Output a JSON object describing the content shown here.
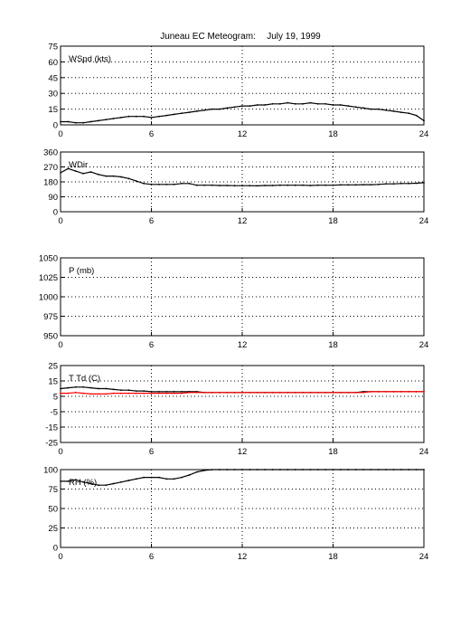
{
  "figure": {
    "title": "Juneau EC Meteogram:",
    "date": "July 19, 1999"
  },
  "chart_data": [
    {
      "type": "scatter",
      "panel_label": "WSpd (kts)",
      "x": [
        0,
        0.5,
        1,
        1.5,
        2,
        2.5,
        3,
        3.5,
        4,
        4.5,
        5,
        5.5,
        6,
        6.5,
        7,
        7.5,
        8,
        8.5,
        9,
        9.5,
        10,
        10.5,
        11,
        11.5,
        12,
        12.5,
        13,
        13.5,
        14,
        14.5,
        15,
        15.5,
        16,
        16.5,
        17,
        17.5,
        18,
        18.5,
        19,
        19.5,
        20,
        20.5,
        21,
        21.5,
        22,
        22.5,
        23,
        23.5,
        24
      ],
      "series": [
        {
          "name": "",
          "color": "#000000",
          "values": [
            3,
            3,
            2,
            2,
            3,
            4,
            5,
            6,
            7,
            8,
            8,
            8,
            7,
            8,
            9,
            10,
            11,
            12,
            13,
            14,
            15,
            15,
            16,
            17,
            18,
            18,
            19,
            19,
            20,
            20,
            21,
            20,
            20,
            21,
            20,
            20,
            19,
            19,
            18,
            17,
            16,
            15,
            15,
            14,
            13,
            12,
            11,
            9,
            4
          ]
        }
      ],
      "xlim": [
        0,
        24
      ],
      "ylim": [
        0,
        75
      ],
      "xticks": [
        0,
        6,
        12,
        18,
        24
      ],
      "yticks": [
        0,
        15,
        30,
        45,
        60,
        75
      ],
      "xtick_labels": [
        "0",
        "6",
        "12",
        "18",
        "24"
      ],
      "ytick_labels": [
        "0",
        "15",
        "30",
        "45",
        "60",
        "75"
      ],
      "grid": true
    },
    {
      "type": "scatter",
      "panel_label": "WDir",
      "x": [
        0,
        0.5,
        1,
        1.5,
        2,
        2.5,
        3,
        3.5,
        4,
        4.5,
        5,
        5.5,
        6,
        6.5,
        7,
        7.5,
        8,
        8.5,
        9,
        9.5,
        10,
        10.5,
        11,
        11.5,
        12,
        12.5,
        13,
        13.5,
        14,
        14.5,
        15,
        15.5,
        16,
        16.5,
        17,
        17.5,
        18,
        18.5,
        19,
        19.5,
        20,
        20.5,
        21,
        21.5,
        22,
        22.5,
        23,
        23.5,
        24
      ],
      "series": [
        {
          "name": "",
          "color": "#000000",
          "values": [
            235,
            260,
            245,
            230,
            240,
            225,
            215,
            215,
            210,
            200,
            185,
            170,
            165,
            165,
            165,
            165,
            170,
            170,
            160,
            160,
            160,
            158,
            158,
            157,
            157,
            157,
            156,
            158,
            158,
            160,
            160,
            160,
            160,
            158,
            160,
            160,
            160,
            162,
            162,
            162,
            163,
            163,
            165,
            168,
            168,
            170,
            170,
            172,
            175
          ]
        }
      ],
      "xlim": [
        0,
        24
      ],
      "ylim": [
        0,
        360
      ],
      "xticks": [
        0,
        6,
        12,
        18,
        24
      ],
      "yticks": [
        0,
        90,
        180,
        270,
        360
      ],
      "xtick_labels": [
        "0",
        "6",
        "12",
        "18",
        "24"
      ],
      "ytick_labels": [
        "0",
        "90",
        "180",
        "270",
        "360"
      ],
      "grid": true
    },
    {
      "type": "line",
      "panel_label": "P (mb)",
      "x": [],
      "series": [],
      "xlim": [
        0,
        24
      ],
      "ylim": [
        950,
        1050
      ],
      "xticks": [
        0,
        6,
        12,
        18,
        24
      ],
      "yticks": [
        950,
        975,
        1000,
        1025,
        1050
      ],
      "xtick_labels": [
        "0",
        "6",
        "12",
        "18",
        "24"
      ],
      "ytick_labels": [
        "950",
        "975",
        "1000",
        "1025",
        "1050"
      ],
      "grid": true
    },
    {
      "type": "line",
      "panel_label": "T Td (C)",
      "x": [
        0,
        0.5,
        1,
        1.5,
        2,
        2.5,
        3,
        3.5,
        4,
        4.5,
        5,
        5.5,
        6,
        6.5,
        7,
        7.5,
        8,
        8.5,
        9,
        9.5,
        10,
        10.5,
        11,
        11.5,
        12,
        12.5,
        13,
        13.5,
        14,
        14.5,
        15,
        15.5,
        16,
        16.5,
        17,
        17.5,
        18,
        18.5,
        19,
        19.5,
        20,
        20.5,
        21,
        21.5,
        22,
        22.5,
        23,
        23.5,
        24
      ],
      "series": [
        {
          "name": "",
          "color": "#000000",
          "values": [
            10,
            10.5,
            11,
            11,
            10.5,
            10,
            10,
            9.5,
            9,
            9,
            8.5,
            8.5,
            8,
            8,
            8,
            8,
            8,
            8,
            8,
            7.5,
            7.5,
            7.5,
            7.5,
            7.5,
            7.5,
            7.5,
            7.5,
            7.5,
            7.5,
            7.5,
            7.5,
            7.5,
            7.5,
            7.5,
            7.5,
            7.5,
            7.5,
            7.5,
            7.5,
            7.5,
            8,
            8,
            8,
            8,
            8,
            8,
            8,
            8,
            8
          ]
        },
        {
          "name": "",
          "color": "#ff0000",
          "values": [
            7,
            7,
            7.5,
            7,
            6.5,
            6.5,
            6.5,
            7,
            7,
            7,
            7,
            7,
            7,
            7,
            7,
            7,
            7,
            7.5,
            7.5,
            7.5,
            7.5,
            7.5,
            7.5,
            7.5,
            7.5,
            7.5,
            7.5,
            7.5,
            7.5,
            7.5,
            7.5,
            7.5,
            7.5,
            7.5,
            7.5,
            7.5,
            7.5,
            7.5,
            7.5,
            7.5,
            7.5,
            8,
            8,
            8,
            8,
            8,
            8,
            8,
            8
          ]
        }
      ],
      "xlim": [
        0,
        24
      ],
      "ylim": [
        -25,
        25
      ],
      "xticks": [
        0,
        6,
        12,
        18,
        24
      ],
      "yticks": [
        -25,
        -15,
        -5,
        5,
        15,
        25
      ],
      "xtick_labels": [
        "0",
        "6",
        "12",
        "18",
        "24"
      ],
      "ytick_labels": [
        "-25",
        "-15",
        "-5",
        "5",
        "15",
        "25"
      ],
      "grid": true
    },
    {
      "type": "scatter",
      "panel_label": "RH (%)",
      "x": [
        0,
        0.5,
        1,
        1.5,
        2,
        2.5,
        3,
        3.5,
        4,
        4.5,
        5,
        5.5,
        6,
        6.5,
        7,
        7.5,
        8,
        8.5,
        9,
        9.5,
        10,
        10.5,
        11,
        11.5,
        12,
        12.5,
        13,
        13.5,
        14,
        14.5,
        15,
        15.5,
        16,
        16.5,
        17,
        17.5,
        18,
        18.5,
        19,
        19.5,
        20,
        20.5,
        21,
        21.5,
        22,
        22.5,
        23,
        23.5,
        24
      ],
      "series": [
        {
          "name": "",
          "color": "#000000",
          "values": [
            85,
            85,
            87,
            84,
            82,
            80,
            80,
            82,
            84,
            86,
            88,
            90,
            90,
            90,
            88,
            88,
            90,
            93,
            97,
            99,
            100,
            100,
            100,
            100,
            100,
            100,
            100,
            100,
            100,
            100,
            100,
            100,
            100,
            100,
            100,
            100,
            100,
            100,
            100,
            100,
            100,
            100,
            100,
            100,
            100,
            100,
            100,
            100,
            100
          ]
        }
      ],
      "xlim": [
        0,
        24
      ],
      "ylim": [
        0,
        100
      ],
      "xticks": [
        0,
        6,
        12,
        18,
        24
      ],
      "yticks": [
        0,
        25,
        50,
        75,
        100
      ],
      "xtick_labels": [
        "0",
        "6",
        "12",
        "18",
        "24"
      ],
      "ytick_labels": [
        "0",
        "25",
        "50",
        "75",
        "100"
      ],
      "grid": true
    }
  ]
}
